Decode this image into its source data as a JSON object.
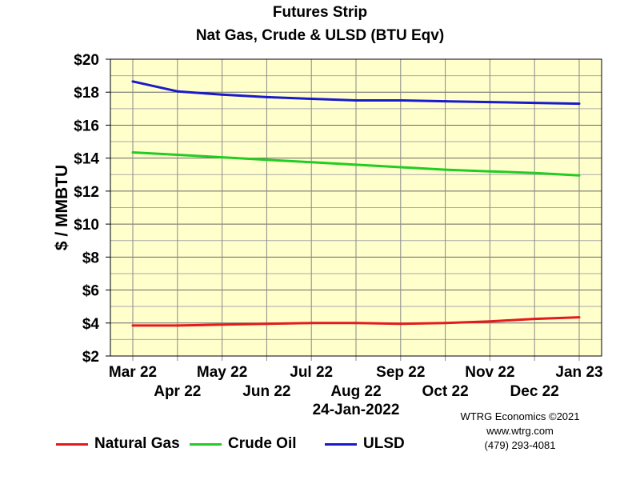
{
  "title": "Futures Strip",
  "subtitle": "Nat Gas, Crude & ULSD (BTU Eqv)",
  "date_label": "24-Jan-2022",
  "credit": {
    "line1": "WTRG Economics ©2021",
    "line2": "www.wtrg.com",
    "line3": "(479) 293-4081"
  },
  "colors": {
    "plot_background": "#ffffcc",
    "grid": "#888888",
    "natural_gas": "#e41a1c",
    "crude_oil": "#22cc22",
    "ulsd": "#1a1acc"
  },
  "chart_data": {
    "type": "line",
    "title": "Futures Strip",
    "subtitle": "Nat Gas, Crude & ULSD (BTU Eqv)",
    "xlabel": "",
    "ylabel": "$ / MMBTU",
    "categories": [
      "Mar 22",
      "Apr 22",
      "May 22",
      "Jun 22",
      "Jul 22",
      "Aug 22",
      "Sep 22",
      "Oct 22",
      "Nov 22",
      "Dec 22",
      "Jan 23"
    ],
    "yticks": [
      "$2",
      "$4",
      "$6",
      "$8",
      "$10",
      "$12",
      "$14",
      "$16",
      "$18",
      "$20"
    ],
    "ylim": [
      2,
      20
    ],
    "grid": true,
    "legend_position": "bottom-left",
    "series": [
      {
        "name": "Natural Gas",
        "color": "#e41a1c",
        "values": [
          3.85,
          3.85,
          3.9,
          3.95,
          4.0,
          4.0,
          3.95,
          4.0,
          4.1,
          4.25,
          4.35
        ]
      },
      {
        "name": "Crude Oil",
        "color": "#22cc22",
        "values": [
          14.35,
          14.2,
          14.05,
          13.9,
          13.75,
          13.6,
          13.45,
          13.3,
          13.2,
          13.1,
          12.95
        ]
      },
      {
        "name": "ULSD",
        "color": "#1a1acc",
        "values": [
          18.65,
          18.05,
          17.85,
          17.7,
          17.6,
          17.5,
          17.5,
          17.45,
          17.4,
          17.35,
          17.3
        ]
      }
    ]
  }
}
